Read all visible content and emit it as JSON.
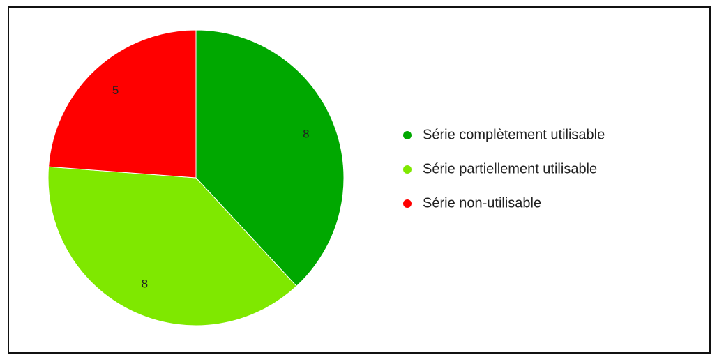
{
  "chart_data": {
    "type": "pie",
    "categories": [
      "Série complètement utilisable",
      "Série partiellement utilisable",
      "Série non-utilisable"
    ],
    "values": [
      8,
      8,
      5
    ],
    "colors": [
      "#00a800",
      "#7fe800",
      "#ff0000"
    ]
  }
}
